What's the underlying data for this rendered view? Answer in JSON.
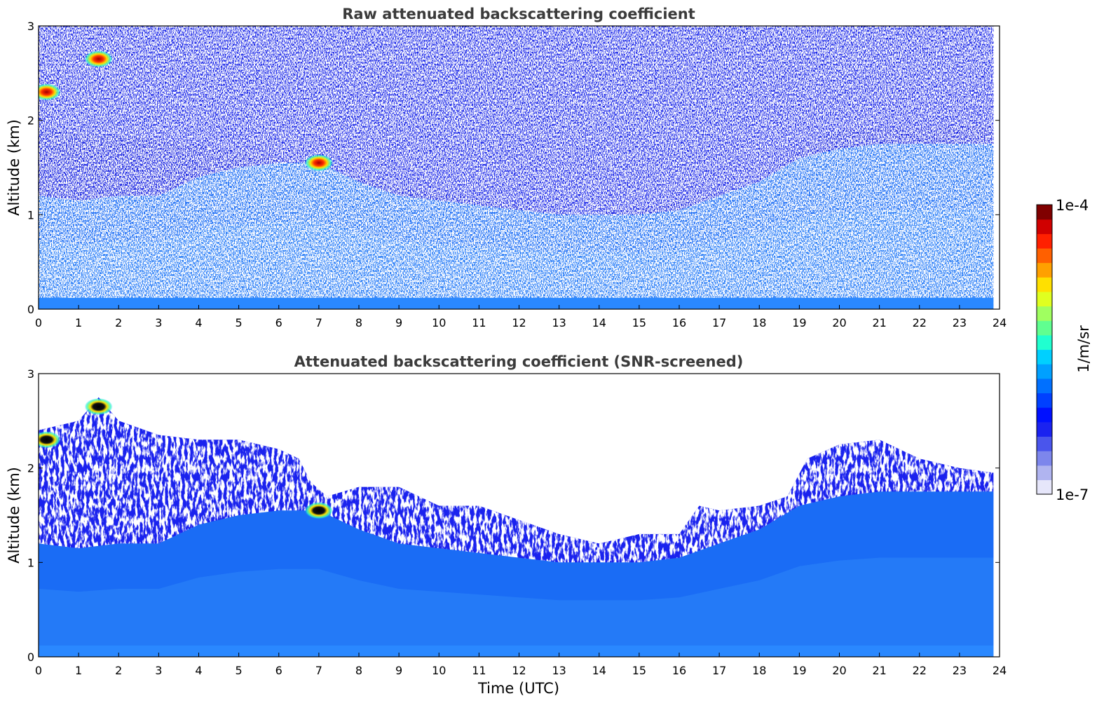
{
  "chart_data": [
    {
      "type": "heatmap",
      "title": "Raw attenuated backscattering coefficient",
      "xlabel": "",
      "ylabel": "Altitude (km)",
      "xlim": [
        0,
        24
      ],
      "ylim": [
        0,
        3
      ],
      "xticks": [
        "0",
        "1",
        "2",
        "3",
        "4",
        "5",
        "6",
        "7",
        "8",
        "9",
        "10",
        "11",
        "12",
        "13",
        "14",
        "15",
        "16",
        "17",
        "18",
        "19",
        "20",
        "21",
        "22",
        "23",
        "24"
      ],
      "yticks": [
        "0",
        "1",
        "2",
        "3"
      ],
      "data_end_hour": 23.85,
      "colorscale": "log",
      "boundary_layer_top_km": [
        [
          0,
          1.2
        ],
        [
          1,
          1.15
        ],
        [
          2,
          1.2
        ],
        [
          3,
          1.2
        ],
        [
          4,
          1.4
        ],
        [
          5,
          1.5
        ],
        [
          6,
          1.55
        ],
        [
          7,
          1.55
        ],
        [
          8,
          1.35
        ],
        [
          9,
          1.2
        ],
        [
          10,
          1.15
        ],
        [
          11,
          1.1
        ],
        [
          12,
          1.05
        ],
        [
          13,
          1.0
        ],
        [
          14,
          1.0
        ],
        [
          15,
          1.0
        ],
        [
          16,
          1.05
        ],
        [
          17,
          1.2
        ],
        [
          18,
          1.35
        ],
        [
          19,
          1.6
        ],
        [
          20,
          1.7
        ],
        [
          21,
          1.75
        ],
        [
          22,
          1.75
        ],
        [
          23,
          1.75
        ],
        [
          23.85,
          1.75
        ]
      ],
      "noise_level_top_km": [
        [
          0,
          1.9
        ],
        [
          3,
          1.8
        ],
        [
          6,
          1.6
        ],
        [
          9,
          1.3
        ],
        [
          12,
          1.1
        ],
        [
          13.5,
          1.0
        ],
        [
          15,
          1.05
        ],
        [
          16.5,
          1.2
        ],
        [
          18,
          1.3
        ],
        [
          19,
          1.7
        ],
        [
          20,
          1.9
        ],
        [
          23.85,
          1.95
        ]
      ],
      "features": [
        {
          "x": 0.2,
          "y": 2.3,
          "level": "high"
        },
        {
          "x": 1.5,
          "y": 2.65,
          "level": "high"
        },
        {
          "x": 7.0,
          "y": 1.55,
          "level": "high"
        }
      ]
    },
    {
      "type": "heatmap",
      "title": "Attenuated backscattering coefficient (SNR-screened)",
      "xlabel": "Time (UTC)",
      "ylabel": "Altitude (km)",
      "xlim": [
        0,
        24
      ],
      "ylim": [
        0,
        3
      ],
      "xticks": [
        "0",
        "1",
        "2",
        "3",
        "4",
        "5",
        "6",
        "7",
        "8",
        "9",
        "10",
        "11",
        "12",
        "13",
        "14",
        "15",
        "16",
        "17",
        "18",
        "19",
        "20",
        "21",
        "22",
        "23",
        "24"
      ],
      "yticks": [
        "0",
        "1",
        "2",
        "3"
      ],
      "data_end_hour": 23.85,
      "colorscale": "log",
      "signal_top_km": [
        [
          0,
          2.4
        ],
        [
          1,
          2.5
        ],
        [
          1.5,
          2.75
        ],
        [
          2,
          2.5
        ],
        [
          3,
          2.35
        ],
        [
          4,
          2.3
        ],
        [
          5,
          2.3
        ],
        [
          6,
          2.2
        ],
        [
          6.5,
          2.1
        ],
        [
          6.8,
          1.85
        ],
        [
          7.2,
          1.7
        ],
        [
          8,
          1.8
        ],
        [
          9,
          1.8
        ],
        [
          10,
          1.6
        ],
        [
          11,
          1.6
        ],
        [
          12,
          1.45
        ],
        [
          13,
          1.3
        ],
        [
          14,
          1.2
        ],
        [
          15,
          1.3
        ],
        [
          16,
          1.3
        ],
        [
          16.5,
          1.6
        ],
        [
          17,
          1.55
        ],
        [
          18,
          1.6
        ],
        [
          18.7,
          1.7
        ],
        [
          19.2,
          2.1
        ],
        [
          20,
          2.25
        ],
        [
          21,
          2.3
        ],
        [
          22,
          2.1
        ],
        [
          23,
          2.0
        ],
        [
          23.85,
          1.95
        ]
      ],
      "features": [
        {
          "x": 0.2,
          "y": 2.3,
          "level": "saturated"
        },
        {
          "x": 1.5,
          "y": 2.65,
          "level": "saturated"
        },
        {
          "x": 7.0,
          "y": 1.55,
          "level": "saturated"
        }
      ]
    }
  ],
  "colorbar": {
    "label": "1/m/sr",
    "max_label": "1e-4",
    "min_label": "1e-7",
    "colors": [
      "#e6e6fa",
      "#b0b4f0",
      "#7d86ec",
      "#4a55ec",
      "#1a22f0",
      "#0010ff",
      "#0040ff",
      "#0070ff",
      "#00a0ff",
      "#00d0ff",
      "#20ffd0",
      "#60ff90",
      "#a0ff60",
      "#e0ff20",
      "#ffe000",
      "#ffa000",
      "#ff6000",
      "#ff2000",
      "#d00000",
      "#800000"
    ]
  }
}
